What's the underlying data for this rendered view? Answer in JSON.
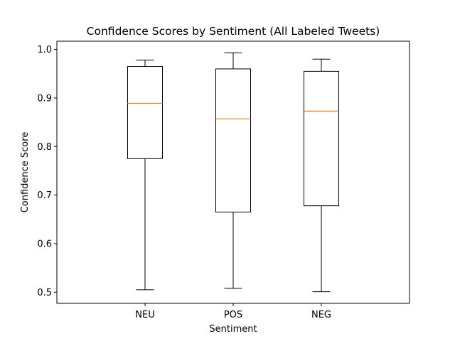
{
  "chart_data": {
    "type": "box",
    "title": "Confidence Scores by Sentiment (All Labeled Tweets)",
    "xlabel": "Sentiment",
    "ylabel": "Confidence Score",
    "categories": [
      "NEU",
      "POS",
      "NEG"
    ],
    "boxes": [
      {
        "category": "NEU",
        "min": 0.505,
        "q1": 0.775,
        "median": 0.889,
        "q3": 0.965,
        "max": 0.978
      },
      {
        "category": "POS",
        "min": 0.508,
        "q1": 0.665,
        "median": 0.857,
        "q3": 0.96,
        "max": 0.993
      },
      {
        "category": "NEG",
        "min": 0.501,
        "q1": 0.678,
        "median": 0.873,
        "q3": 0.955,
        "max": 0.98
      }
    ],
    "ylim": [
      0.477,
      1.017
    ],
    "yticks": [
      0.5,
      0.6,
      0.7,
      0.8,
      0.9,
      1.0
    ],
    "ytick_labels": [
      "0.5",
      "0.6",
      "0.7",
      "0.8",
      "0.9",
      "1.0"
    ],
    "grid": false,
    "colors": {
      "box": "#000000",
      "median": "#ff7f0e",
      "background": "#ffffff"
    }
  }
}
